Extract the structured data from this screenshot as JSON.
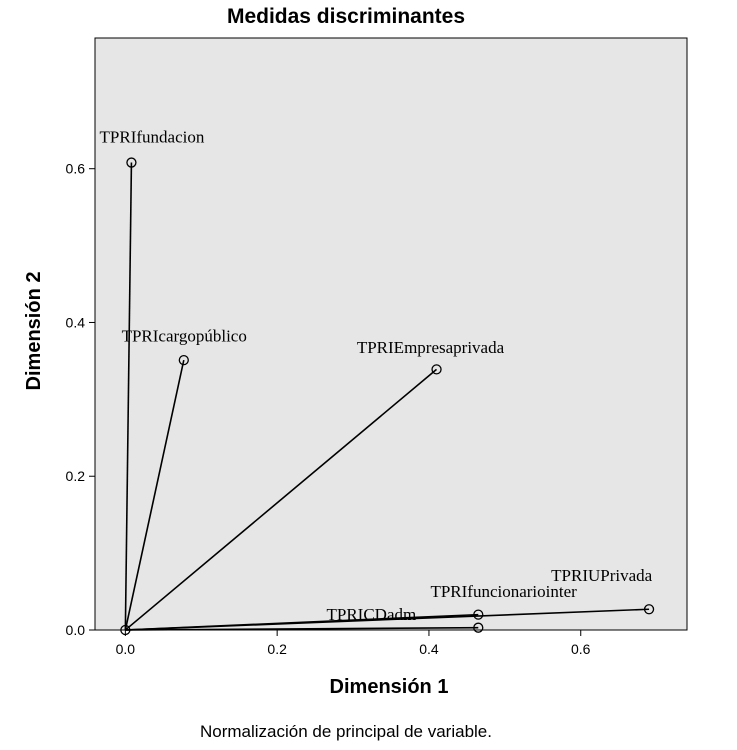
{
  "chart_data": {
    "type": "scatter",
    "title": "Medidas discriminantes",
    "xlabel": "Dimensión 1",
    "ylabel": "Dimensión 2",
    "footnote": "Normalización de principal de variable.",
    "xlim": [
      -0.04,
      0.74
    ],
    "ylim": [
      0.0,
      0.77
    ],
    "xticks": [
      0.0,
      0.2,
      0.4,
      0.6
    ],
    "yticks": [
      0.0,
      0.2,
      0.4,
      0.6
    ],
    "tick_labels": {
      "x": [
        "0.0",
        "0.2",
        "0.4",
        "0.6"
      ],
      "y": [
        "0.0",
        "0.2",
        "0.4",
        "0.6"
      ]
    },
    "grid": false,
    "vectors_from_origin": true,
    "background": "#e6e6e6",
    "points": [
      {
        "name": "TPRIfundacion",
        "x": 0.008,
        "y": 0.608,
        "label_anchor": "start",
        "label_dx": -0.042,
        "label_dy": 0.026
      },
      {
        "name": "TPRIcargopúblico",
        "x": 0.077,
        "y": 0.351,
        "label_anchor": "start",
        "label_dx": -0.082,
        "label_dy": 0.024
      },
      {
        "name": "TPRIEmpresaprivada",
        "x": 0.41,
        "y": 0.339,
        "label_anchor": "start",
        "label_dx": -0.105,
        "label_dy": 0.021
      },
      {
        "name": "TPRIUPrivada",
        "x": 0.69,
        "y": 0.027,
        "label_anchor": "start",
        "label_dx": -0.129,
        "label_dy": 0.037
      },
      {
        "name": "TPRIfuncionariointer",
        "x": 0.465,
        "y": 0.02,
        "label_anchor": "start",
        "label_dx": -0.063,
        "label_dy": 0.023
      },
      {
        "name": "TPRICDadm",
        "x": 0.465,
        "y": 0.003,
        "label_anchor": "start",
        "label_dx": -0.2,
        "label_dy": 0.01
      }
    ]
  }
}
